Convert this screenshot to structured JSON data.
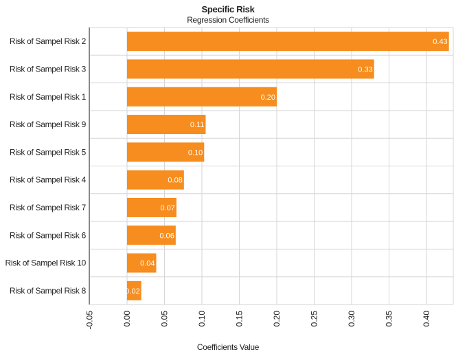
{
  "chart_data": {
    "type": "bar",
    "orientation": "horizontal",
    "title": "Specific Risk",
    "subtitle": "Regression Coefficients",
    "xlabel": "Coefficients Value",
    "ylabel": "",
    "categories": [
      "Risk of Sampel Risk 2",
      "Risk of Sampel Risk 3",
      "Risk of Sampel Risk 1",
      "Risk of Sampel Risk 9",
      "Risk of Sampel Risk 5",
      "Risk of Sampel Risk 4",
      "Risk of Sampel Risk 7",
      "Risk of Sampel Risk 6",
      "Risk of Sampel Risk 10",
      "Risk of Sampel Risk 8"
    ],
    "values": [
      0.43,
      0.33,
      0.2,
      0.105,
      0.103,
      0.076,
      0.066,
      0.065,
      0.039,
      0.019
    ],
    "data_labels": [
      "0.43",
      "0.33",
      "0.20",
      "0.11",
      "0.10",
      "0.08",
      "0.07",
      "0.06",
      "0.04",
      "0.02"
    ],
    "xlim": [
      -0.05,
      0.44
    ],
    "xticks": [
      -0.05,
      0.0,
      0.05,
      0.1,
      0.15,
      0.2,
      0.25,
      0.3,
      0.35,
      0.4
    ],
    "xtick_labels": [
      "-0.05",
      "0.00",
      "0.05",
      "0.10",
      "0.15",
      "0.20",
      "0.25",
      "0.30",
      "0.35",
      "0.40"
    ],
    "grid": true,
    "legend": "none",
    "bar_color": "#F68D1E",
    "label_color": "#FFFFFF",
    "grid_color": "#D6D6D6"
  }
}
